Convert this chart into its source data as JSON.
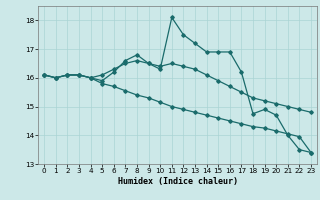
{
  "xlabel": "Humidex (Indice chaleur)",
  "bg_color": "#cce8e8",
  "grid_color": "#aad4d4",
  "line_color": "#1a6b6b",
  "xlim": [
    -0.5,
    23.5
  ],
  "ylim": [
    13.0,
    18.5
  ],
  "yticks": [
    13,
    14,
    15,
    16,
    17,
    18
  ],
  "xticks": [
    0,
    1,
    2,
    3,
    4,
    5,
    6,
    7,
    8,
    9,
    10,
    11,
    12,
    13,
    14,
    15,
    16,
    17,
    18,
    19,
    20,
    21,
    22,
    23
  ],
  "series": [
    [
      16.1,
      16.0,
      16.1,
      16.1,
      16.0,
      15.9,
      16.2,
      16.6,
      16.8,
      16.5,
      16.3,
      18.1,
      17.5,
      17.2,
      16.9,
      16.9,
      16.9,
      16.2,
      14.75,
      14.9,
      14.7,
      14.0,
      13.5,
      13.4
    ],
    [
      16.1,
      16.0,
      16.1,
      16.1,
      16.0,
      16.1,
      16.3,
      16.5,
      16.6,
      16.5,
      16.4,
      16.5,
      16.4,
      16.3,
      16.1,
      15.9,
      15.7,
      15.5,
      15.3,
      15.2,
      15.1,
      15.0,
      14.9,
      14.8
    ],
    [
      16.1,
      16.0,
      16.1,
      16.1,
      16.0,
      15.8,
      15.7,
      15.55,
      15.4,
      15.3,
      15.15,
      15.0,
      14.9,
      14.8,
      14.7,
      14.6,
      14.5,
      14.4,
      14.3,
      14.25,
      14.15,
      14.05,
      13.95,
      13.4
    ]
  ]
}
